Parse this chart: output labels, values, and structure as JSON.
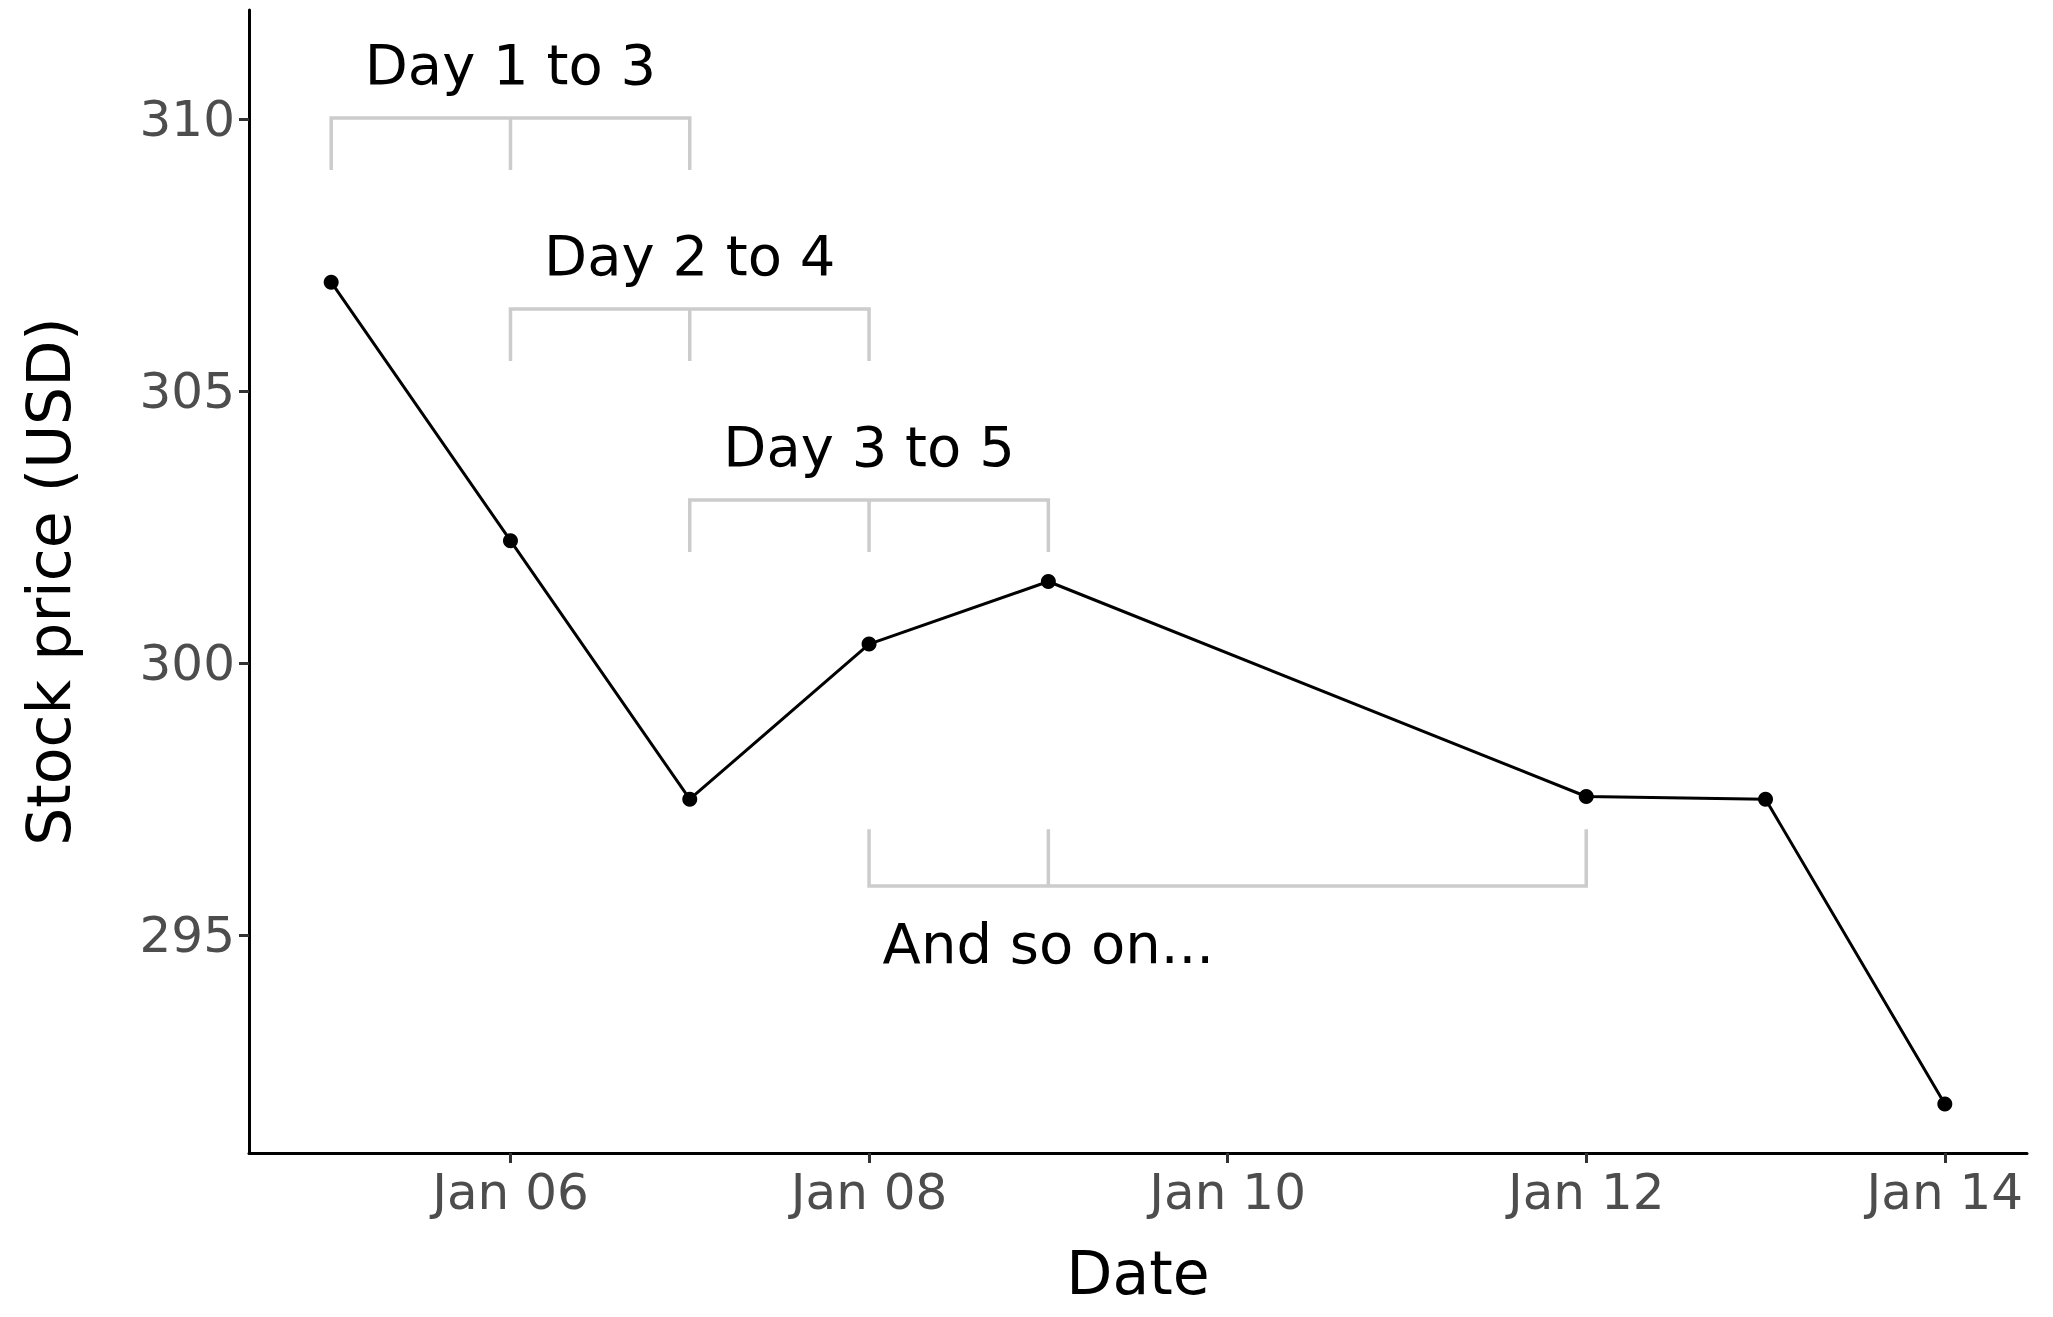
{
  "chart_data": {
    "type": "line",
    "xlabel": "Date",
    "ylabel": "Stock price (USD)",
    "x": [
      "--01-05",
      "--01-06",
      "--01-07",
      "--01-08",
      "--01-09",
      "--01-12",
      "--01-13",
      "--01-14"
    ],
    "series": [
      {
        "color": "#000000",
        "values": [
          307.0,
          302.25,
          297.5,
          300.35,
          301.5,
          297.55,
          297.5,
          291.9
        ]
      }
    ],
    "xlim": [
      "--01-04T13:00",
      "--01-14T11:00"
    ],
    "xticks": [
      {
        "value": "--01-06",
        "label": "Jan 06"
      },
      {
        "value": "--01-08",
        "label": "Jan 08"
      },
      {
        "value": "--01-10",
        "label": "Jan 10"
      },
      {
        "value": "--01-12",
        "label": "Jan 12"
      },
      {
        "value": "--01-14",
        "label": "Jan 14"
      }
    ],
    "ylim": [
      291,
      312
    ],
    "yticks": [
      295,
      300,
      305,
      310
    ],
    "grid": false,
    "marker": "circle",
    "line_style": "solid",
    "annotations": [
      "Day 1 to 3",
      "Day 2 to 4",
      "Day 3 to 5",
      "And so on..."
    ]
  }
}
